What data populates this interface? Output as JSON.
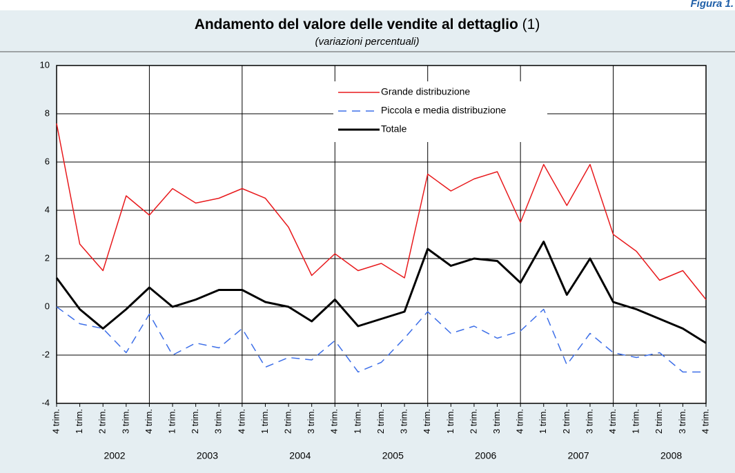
{
  "figure_label": "Figura 1.",
  "chart_data": {
    "type": "line",
    "title": "Andamento del valore delle vendite al dettaglio",
    "title_note": "(1)",
    "subtitle": "(variazioni percentuali)",
    "categories": [
      "4 trim.",
      "1 trim.",
      "2 trim.",
      "3 trim.",
      "4 trim.",
      "1 trim.",
      "2 trim.",
      "3 trim.",
      "4 trim.",
      "1 trim.",
      "2 trim.",
      "3 trim.",
      "4 trim.",
      "1 trim.",
      "2 trim.",
      "3 trim.",
      "4 trim.",
      "1 trim.",
      "2 trim.",
      "3 trim.",
      "4 trim.",
      "1 trim.",
      "2 trim.",
      "3 trim.",
      "4 trim.",
      "1 trim.",
      "2 trim.",
      "3 trim.",
      "4 trim."
    ],
    "years": [
      "2002",
      "2003",
      "2004",
      "2005",
      "2006",
      "2007",
      "2008"
    ],
    "series": [
      {
        "name": "Grande distribuzione",
        "color": "#e8191c",
        "style": "solid",
        "width": 1.5,
        "values": [
          7.6,
          2.6,
          1.5,
          4.6,
          3.8,
          4.9,
          4.3,
          4.5,
          4.9,
          4.5,
          3.3,
          1.3,
          2.2,
          1.5,
          1.8,
          1.2,
          5.5,
          4.8,
          5.3,
          5.6,
          3.5,
          5.9,
          4.2,
          5.9,
          3.0,
          2.3,
          1.1,
          1.5,
          0.3
        ]
      },
      {
        "name": "Piccola e media distribuzione",
        "color": "#3c6ee8",
        "style": "dashed",
        "width": 1.5,
        "values": [
          0.0,
          -0.7,
          -0.9,
          -1.9,
          -0.3,
          -2.0,
          -1.5,
          -1.7,
          -0.9,
          -2.5,
          -2.1,
          -2.2,
          -1.4,
          -2.7,
          -2.3,
          -1.3,
          -0.2,
          -1.1,
          -0.8,
          -1.3,
          -1.0,
          -0.1,
          -2.4,
          -1.1,
          -1.9,
          -2.1,
          -1.9,
          -2.7,
          -2.7
        ]
      },
      {
        "name": "Totale",
        "color": "#000000",
        "style": "solid",
        "width": 3,
        "values": [
          1.2,
          -0.1,
          -0.9,
          -0.1,
          0.8,
          0.0,
          0.3,
          0.7,
          0.7,
          0.2,
          0.0,
          -0.6,
          0.3,
          -0.8,
          -0.5,
          -0.2,
          2.4,
          1.7,
          2.0,
          1.9,
          1.0,
          2.7,
          0.5,
          2.0,
          0.2,
          -0.1,
          -0.5,
          -0.9,
          -1.5
        ]
      }
    ],
    "ylim": [
      -4,
      10
    ],
    "yticks": [
      -4,
      -2,
      0,
      2,
      4,
      6,
      8,
      10
    ],
    "grid": true,
    "legend": "top-center"
  }
}
